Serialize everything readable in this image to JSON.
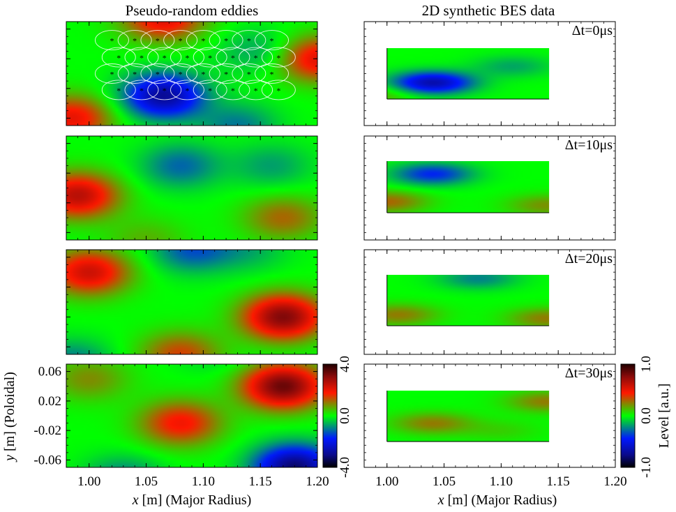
{
  "chart_data": [
    {
      "type": "heatmap",
      "title": "Pseudo-random eddies",
      "xlabel_italic": "x",
      "xlabel_rest": " [m] (Major Radius)",
      "ylabel_italic": "y",
      "ylabel_rest": " [m] (Poloidal)",
      "xlim": [
        0.98,
        1.2
      ],
      "ylim": [
        -0.07,
        0.07
      ],
      "x_ticks": [
        "1.00",
        "1.05",
        "1.10",
        "1.15",
        "1.20"
      ],
      "x_tick_values": [
        1.0,
        1.05,
        1.1,
        1.15,
        1.2
      ],
      "y_ticks": [
        "0.06",
        "0.02",
        "-0.02",
        "-0.06"
      ],
      "y_tick_values": [
        0.06,
        0.02,
        -0.02,
        -0.06
      ],
      "colorbar": {
        "ticks": [
          "4.0",
          "0.0",
          "-4.0"
        ],
        "values": [
          4.0,
          0.0,
          -4.0
        ],
        "range": [
          -4.0,
          4.0
        ]
      },
      "panels": [
        {
          "eddies": [
            [
              1.065,
              0.075,
              3.0
            ],
            [
              1.2,
              0.02,
              3.0
            ],
            [
              0.985,
              -0.06,
              2.8
            ],
            [
              1.065,
              -0.03,
              -4.0
            ],
            [
              1.13,
              -0.07,
              -1.4
            ],
            [
              1.15,
              0.03,
              -1.0
            ]
          ],
          "marker_rows": [
            0.045,
            0.022,
            0.0,
            -0.022
          ],
          "marker_xs": [
            1.02,
            1.04,
            1.06,
            1.08,
            1.1,
            1.12,
            1.14,
            1.16
          ]
        },
        {
          "eddies": [
            [
              0.99,
              -0.01,
              3.5
            ],
            [
              1.17,
              -0.04,
              1.6
            ],
            [
              1.08,
              0.03,
              -1.6
            ],
            [
              1.16,
              0.03,
              -1.0
            ],
            [
              1.05,
              -0.07,
              0.8
            ]
          ]
        },
        {
          "eddies": [
            [
              1.0,
              0.04,
              3.2
            ],
            [
              1.17,
              -0.02,
              4.3
            ],
            [
              1.08,
              -0.07,
              2.0
            ],
            [
              1.09,
              0.07,
              -1.8
            ],
            [
              0.985,
              -0.08,
              -1.4
            ],
            [
              1.14,
              0.07,
              -0.8
            ]
          ]
        },
        {
          "eddies": [
            [
              1.17,
              0.04,
              4.6
            ],
            [
              1.08,
              -0.01,
              2.6
            ],
            [
              1.0,
              0.05,
              1.2
            ],
            [
              1.18,
              -0.07,
              -4.5
            ],
            [
              1.03,
              -0.085,
              -1.4
            ],
            [
              1.11,
              0.09,
              -0.6
            ]
          ]
        }
      ]
    },
    {
      "type": "heatmap",
      "title": "2D synthetic BES data",
      "xlabel_italic": "x",
      "xlabel_rest": " [m] (Major Radius)",
      "colorbar_label": "Level [a.u.]",
      "xlim": [
        0.98,
        1.2
      ],
      "data_xlim": [
        1.0,
        1.142
      ],
      "x_ticks": [
        "1.00",
        "1.05",
        "1.10",
        "1.15",
        "1.20"
      ],
      "x_tick_values": [
        1.0,
        1.05,
        1.1,
        1.15,
        1.2
      ],
      "colorbar": {
        "ticks": [
          "1.0",
          "0.0",
          "-1.0"
        ],
        "values": [
          1.0,
          0.0,
          -1.0
        ],
        "range": [
          -1.0,
          1.0
        ]
      },
      "panels": [
        {
          "label": "Δt=0μs",
          "eddies": [
            [
              1.04,
              -0.025,
              -0.8
            ],
            [
              1.11,
              0.02,
              -0.2
            ],
            [
              0.99,
              -0.06,
              0.2
            ]
          ]
        },
        {
          "label": "Δt=10μs",
          "eddies": [
            [
              1.04,
              0.035,
              -0.5
            ],
            [
              1.0,
              -0.04,
              0.35
            ],
            [
              1.14,
              -0.05,
              0.25
            ]
          ]
        },
        {
          "label": "Δt=20μs",
          "eddies": [
            [
              1.08,
              0.06,
              -0.28
            ],
            [
              1.01,
              -0.04,
              0.3
            ],
            [
              1.14,
              -0.05,
              0.3
            ]
          ]
        },
        {
          "label": "Δt=30μs",
          "eddies": [
            [
              1.04,
              -0.02,
              0.3
            ],
            [
              1.14,
              0.04,
              0.3
            ],
            [
              1.1,
              -0.04,
              0.1
            ]
          ]
        }
      ]
    }
  ]
}
